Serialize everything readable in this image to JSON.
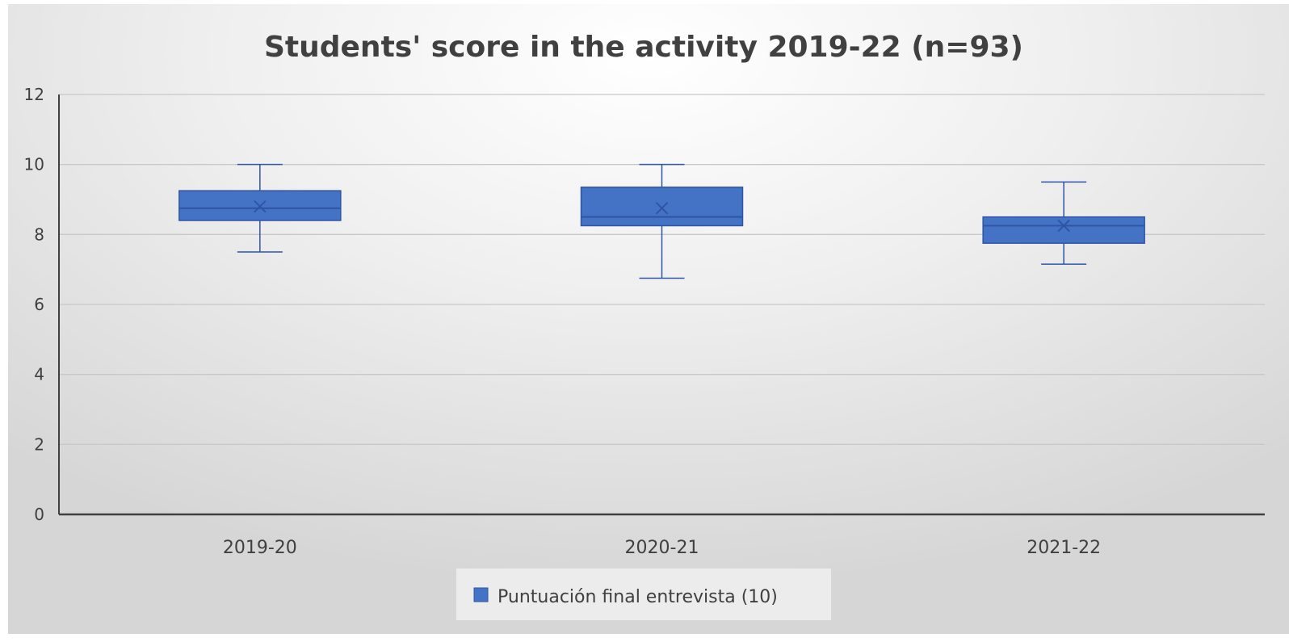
{
  "chart_data": {
    "type": "boxplot",
    "title": "Students' score in the activity 2019-22 (n=93)",
    "xlabel": "",
    "ylabel": "",
    "ylim": [
      0,
      12
    ],
    "yticks": [
      0,
      2,
      4,
      6,
      8,
      10,
      12
    ],
    "grid": true,
    "legend_position": "bottom",
    "categories": [
      "2019-20",
      "2020-21",
      "2021-22"
    ],
    "series": [
      {
        "name": "Puntuación final entrevista (10)",
        "color": "#4472C4",
        "edge_color": "#2F55A4",
        "boxes": [
          {
            "min": 7.5,
            "q1": 8.4,
            "median": 8.75,
            "q3": 9.25,
            "max": 10.0,
            "mean": 8.8
          },
          {
            "min": 6.75,
            "q1": 8.25,
            "median": 8.5,
            "q3": 9.35,
            "max": 10.0,
            "mean": 8.75
          },
          {
            "min": 7.15,
            "q1": 7.75,
            "median": 8.25,
            "q3": 8.5,
            "max": 9.5,
            "mean": 8.25
          }
        ]
      }
    ]
  }
}
